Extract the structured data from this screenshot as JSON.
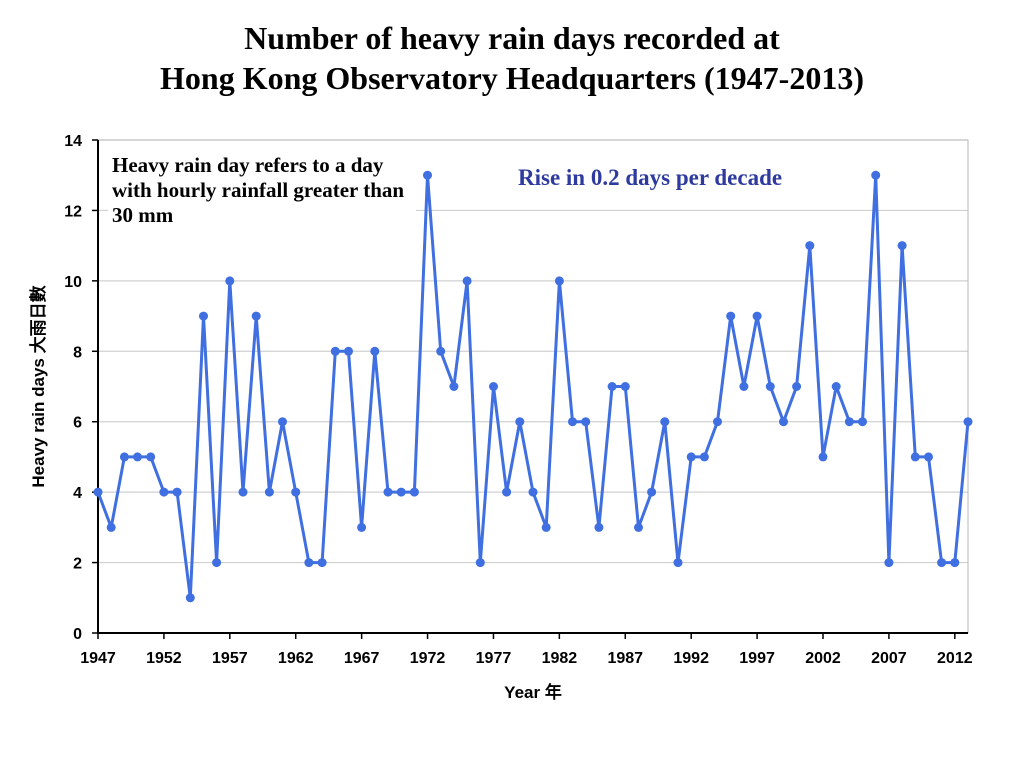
{
  "title_line1": "Number of heavy rain days recorded at",
  "title_line2": "Hong Kong Observatory Headquarters (1947-2013)",
  "note": "Heavy rain day refers to a day with hourly rainfall greater than  30 mm",
  "trend_label": "Rise in 0.2 days per decade",
  "colors": {
    "series": "#3f6fe0",
    "grid": "#d0d0d0",
    "axis": "#000000",
    "trend_text": "#2e3a9e"
  },
  "chart_data": {
    "type": "line",
    "title": "Number of heavy rain days recorded at Hong Kong Observatory Headquarters (1947-2013)",
    "xlabel": "Year 年",
    "ylabel": "Heavy rain days 大雨日數",
    "xlim": [
      1947,
      2013
    ],
    "ylim": [
      0,
      14
    ],
    "x_ticks": [
      1947,
      1952,
      1957,
      1962,
      1967,
      1972,
      1977,
      1982,
      1987,
      1992,
      1997,
      2002,
      2007,
      2012
    ],
    "y_ticks": [
      0,
      2,
      4,
      6,
      8,
      10,
      12,
      14
    ],
    "grid": "horizontal",
    "annotations": [
      "Heavy rain day refers to a day with hourly rainfall greater than  30 mm",
      "Rise in 0.2 days per decade"
    ],
    "series": [
      {
        "x": [
          1947,
          1948,
          1949,
          1950,
          1951,
          1952,
          1953,
          1954,
          1955,
          1956,
          1957,
          1958,
          1959,
          1960,
          1961,
          1962,
          1963,
          1964,
          1965,
          1966,
          1967,
          1968,
          1969,
          1970,
          1971,
          1972,
          1973,
          1974,
          1975,
          1976,
          1977,
          1978,
          1979,
          1980,
          1981,
          1982,
          1983,
          1984,
          1985,
          1986,
          1987,
          1988,
          1989,
          1990,
          1991,
          1992,
          1993,
          1994,
          1995,
          1996,
          1997,
          1998,
          1999,
          2000,
          2001,
          2002,
          2003,
          2004,
          2005,
          2006,
          2007,
          2008,
          2009,
          2010,
          2011,
          2012,
          2013
        ],
        "values": [
          4,
          3,
          5,
          5,
          5,
          4,
          4,
          1,
          9,
          2,
          10,
          4,
          9,
          4,
          6,
          4,
          2,
          2,
          8,
          8,
          3,
          8,
          4,
          4,
          4,
          13,
          8,
          7,
          10,
          2,
          7,
          4,
          6,
          4,
          3,
          10,
          6,
          6,
          3,
          7,
          7,
          3,
          4,
          6,
          2,
          5,
          5,
          6,
          9,
          7,
          9,
          7,
          6,
          7,
          11,
          5,
          7,
          6,
          6,
          13,
          2,
          11,
          5,
          5,
          2,
          2,
          6
        ]
      }
    ]
  }
}
